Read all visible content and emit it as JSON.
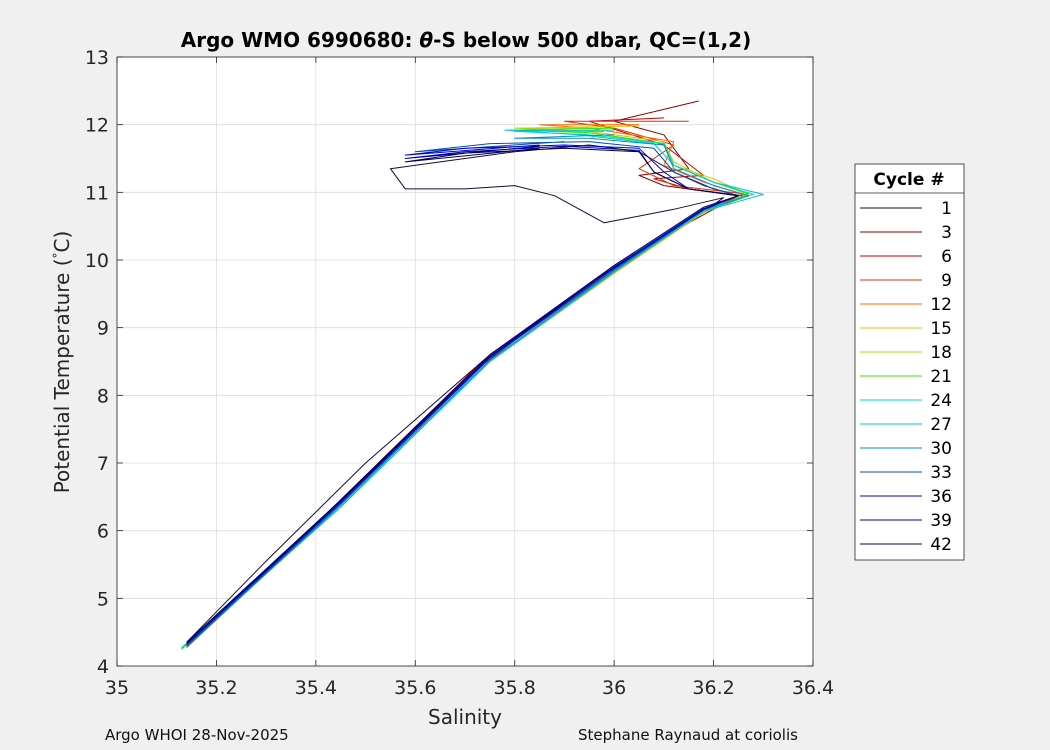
{
  "chart_data": {
    "type": "line",
    "title_prefix": "Argo WMO 6990680: ",
    "title_theta": "θ",
    "title_suffix": "-S below 500 dbar,  QC=(1,2)",
    "xlabel": "Salinity",
    "ylabel_prefix": "Potential Temperature (",
    "ylabel_deg": "°",
    "ylabel_suffix": "C)",
    "xlim": [
      35,
      36.4
    ],
    "ylim": [
      4,
      13
    ],
    "xticks": [
      "35",
      "35.2",
      "35.4",
      "35.6",
      "35.8",
      "36",
      "36.2",
      "36.4"
    ],
    "yticks": [
      "4",
      "5",
      "6",
      "7",
      "8",
      "9",
      "10",
      "11",
      "12",
      "13"
    ],
    "grid": true,
    "legend_title": "Cycle #",
    "legend_position": "right-outside",
    "series": [
      {
        "name": "1",
        "color": "#1a0a3a",
        "values": [
          [
            35.14,
            4.35
          ],
          [
            35.3,
            5.55
          ],
          [
            35.5,
            7.0
          ],
          [
            35.75,
            8.6
          ],
          [
            36.0,
            9.9
          ],
          [
            36.15,
            10.55
          ],
          [
            36.22,
            10.92
          ],
          [
            36.12,
            10.75
          ],
          [
            35.98,
            10.55
          ],
          [
            35.88,
            10.95
          ],
          [
            35.8,
            11.1
          ],
          [
            35.7,
            11.05
          ],
          [
            35.58,
            11.05
          ],
          [
            35.55,
            11.35
          ],
          [
            35.65,
            11.45
          ],
          [
            35.8,
            11.6
          ],
          [
            35.95,
            11.7
          ],
          [
            36.05,
            11.6
          ],
          [
            36.12,
            11.3
          ],
          [
            36.2,
            11.05
          ],
          [
            36.25,
            10.95
          ]
        ]
      },
      {
        "name": "3",
        "color": "#8b0000",
        "values": [
          [
            35.14,
            4.3
          ],
          [
            35.4,
            6.1
          ],
          [
            35.7,
            8.25
          ],
          [
            35.95,
            9.65
          ],
          [
            36.15,
            10.55
          ],
          [
            36.25,
            10.95
          ],
          [
            36.1,
            11.1
          ],
          [
            36.05,
            11.25
          ],
          [
            36.15,
            11.35
          ],
          [
            36.1,
            11.85
          ],
          [
            36.0,
            12.05
          ],
          [
            36.17,
            12.35
          ]
        ]
      },
      {
        "name": "6",
        "color": "#c00000",
        "values": [
          [
            35.14,
            4.3
          ],
          [
            35.42,
            6.2
          ],
          [
            35.72,
            8.4
          ],
          [
            35.98,
            9.8
          ],
          [
            36.18,
            10.7
          ],
          [
            36.26,
            10.95
          ],
          [
            36.15,
            11.05
          ],
          [
            36.08,
            11.2
          ],
          [
            36.18,
            11.25
          ],
          [
            36.1,
            11.7
          ],
          [
            35.95,
            12.05
          ],
          [
            36.1,
            12.1
          ]
        ]
      },
      {
        "name": "9",
        "color": "#e03000",
        "values": [
          [
            35.14,
            4.28
          ],
          [
            35.45,
            6.4
          ],
          [
            35.75,
            8.55
          ],
          [
            36.0,
            9.85
          ],
          [
            36.18,
            10.7
          ],
          [
            36.26,
            10.98
          ],
          [
            36.12,
            11.1
          ],
          [
            36.05,
            11.35
          ],
          [
            36.12,
            11.7
          ],
          [
            36.0,
            11.95
          ],
          [
            35.9,
            12.05
          ],
          [
            36.15,
            12.05
          ]
        ]
      },
      {
        "name": "12",
        "color": "#ff6a00",
        "values": [
          [
            35.14,
            4.27
          ],
          [
            35.45,
            6.4
          ],
          [
            35.75,
            8.55
          ],
          [
            36.0,
            9.85
          ],
          [
            36.18,
            10.7
          ],
          [
            36.27,
            10.95
          ],
          [
            36.18,
            11.15
          ],
          [
            36.1,
            11.4
          ],
          [
            36.12,
            11.75
          ],
          [
            35.95,
            11.95
          ],
          [
            35.85,
            12.0
          ],
          [
            36.05,
            12.0
          ]
        ]
      },
      {
        "name": "15",
        "color": "#e0c000",
        "values": [
          [
            35.13,
            4.25
          ],
          [
            35.45,
            6.35
          ],
          [
            35.75,
            8.5
          ],
          [
            36.0,
            9.8
          ],
          [
            36.18,
            10.7
          ],
          [
            36.27,
            10.97
          ],
          [
            36.2,
            11.2
          ],
          [
            36.12,
            11.4
          ],
          [
            36.1,
            11.75
          ],
          [
            35.95,
            11.9
          ],
          [
            35.82,
            11.95
          ],
          [
            36.05,
            11.98
          ]
        ]
      },
      {
        "name": "18",
        "color": "#a0e000",
        "values": [
          [
            35.13,
            4.25
          ],
          [
            35.45,
            6.35
          ],
          [
            35.75,
            8.5
          ],
          [
            36.0,
            9.82
          ],
          [
            36.18,
            10.72
          ],
          [
            36.27,
            10.97
          ],
          [
            36.2,
            11.15
          ],
          [
            36.12,
            11.45
          ],
          [
            36.1,
            11.72
          ],
          [
            35.95,
            11.88
          ],
          [
            35.8,
            11.95
          ],
          [
            36.0,
            11.95
          ]
        ]
      },
      {
        "name": "21",
        "color": "#40e000",
        "values": [
          [
            35.13,
            4.25
          ],
          [
            35.45,
            6.35
          ],
          [
            35.75,
            8.5
          ],
          [
            36.0,
            9.82
          ],
          [
            36.18,
            10.72
          ],
          [
            36.27,
            10.98
          ],
          [
            36.2,
            11.15
          ],
          [
            36.12,
            11.4
          ],
          [
            36.1,
            11.72
          ],
          [
            35.95,
            11.88
          ],
          [
            35.8,
            11.92
          ],
          [
            36.0,
            11.95
          ]
        ]
      },
      {
        "name": "24",
        "color": "#00d8c8",
        "values": [
          [
            35.13,
            4.26
          ],
          [
            35.45,
            6.35
          ],
          [
            35.75,
            8.5
          ],
          [
            36.0,
            9.82
          ],
          [
            36.18,
            10.72
          ],
          [
            36.28,
            10.97
          ],
          [
            36.2,
            11.15
          ],
          [
            36.12,
            11.4
          ],
          [
            36.1,
            11.72
          ],
          [
            35.95,
            11.85
          ],
          [
            35.8,
            11.9
          ],
          [
            36.0,
            11.92
          ]
        ]
      },
      {
        "name": "27",
        "color": "#00c0e0",
        "values": [
          [
            35.13,
            4.27
          ],
          [
            35.45,
            6.35
          ],
          [
            35.75,
            8.5
          ],
          [
            36.0,
            9.82
          ],
          [
            36.18,
            10.72
          ],
          [
            36.3,
            10.97
          ],
          [
            36.2,
            11.15
          ],
          [
            36.12,
            11.4
          ],
          [
            36.08,
            11.72
          ],
          [
            35.93,
            11.85
          ],
          [
            35.78,
            11.92
          ],
          [
            35.98,
            11.9
          ]
        ]
      },
      {
        "name": "30",
        "color": "#0090c0",
        "values": [
          [
            35.14,
            4.28
          ],
          [
            35.45,
            6.38
          ],
          [
            35.75,
            8.52
          ],
          [
            36.0,
            9.84
          ],
          [
            36.18,
            10.74
          ],
          [
            36.27,
            10.95
          ],
          [
            36.2,
            11.1
          ],
          [
            36.12,
            11.35
          ],
          [
            36.1,
            11.7
          ],
          [
            35.95,
            11.8
          ],
          [
            35.8,
            11.8
          ],
          [
            36.0,
            11.85
          ]
        ]
      },
      {
        "name": "33",
        "color": "#0050b0",
        "values": [
          [
            35.14,
            4.3
          ],
          [
            35.45,
            6.4
          ],
          [
            35.75,
            8.55
          ],
          [
            36.0,
            9.86
          ],
          [
            36.18,
            10.74
          ],
          [
            36.25,
            10.95
          ],
          [
            36.18,
            11.1
          ],
          [
            36.12,
            11.3
          ],
          [
            36.08,
            11.65
          ],
          [
            35.95,
            11.75
          ],
          [
            35.75,
            11.72
          ],
          [
            35.6,
            11.6
          ],
          [
            35.9,
            11.75
          ]
        ]
      },
      {
        "name": "36",
        "color": "#0000e0",
        "values": [
          [
            35.14,
            4.32
          ],
          [
            35.45,
            6.42
          ],
          [
            35.75,
            8.56
          ],
          [
            36.0,
            9.88
          ],
          [
            36.18,
            10.75
          ],
          [
            36.25,
            10.95
          ],
          [
            36.15,
            11.05
          ],
          [
            36.1,
            11.3
          ],
          [
            36.05,
            11.65
          ],
          [
            35.9,
            11.7
          ],
          [
            35.7,
            11.65
          ],
          [
            35.58,
            11.55
          ],
          [
            35.85,
            11.7
          ]
        ]
      },
      {
        "name": "39",
        "color": "#0000a0",
        "values": [
          [
            35.14,
            4.33
          ],
          [
            35.45,
            6.44
          ],
          [
            35.75,
            8.58
          ],
          [
            36.0,
            9.9
          ],
          [
            36.18,
            10.76
          ],
          [
            36.25,
            10.95
          ],
          [
            36.15,
            11.05
          ],
          [
            36.08,
            11.3
          ],
          [
            36.05,
            11.62
          ],
          [
            35.9,
            11.68
          ],
          [
            35.7,
            11.6
          ],
          [
            35.58,
            11.5
          ],
          [
            35.85,
            11.68
          ]
        ]
      },
      {
        "name": "42",
        "color": "#000050",
        "values": [
          [
            35.14,
            4.35
          ],
          [
            35.45,
            6.45
          ],
          [
            35.75,
            8.6
          ],
          [
            36.0,
            9.92
          ],
          [
            36.18,
            10.78
          ],
          [
            36.25,
            10.95
          ],
          [
            36.15,
            11.05
          ],
          [
            36.08,
            11.3
          ],
          [
            36.05,
            11.6
          ],
          [
            35.9,
            11.65
          ],
          [
            35.7,
            11.58
          ],
          [
            35.58,
            11.45
          ],
          [
            35.85,
            11.65
          ]
        ]
      }
    ]
  },
  "footer": {
    "left": "Argo WHOI 28-Nov-2025",
    "right": "Stephane Raynaud at coriolis"
  }
}
